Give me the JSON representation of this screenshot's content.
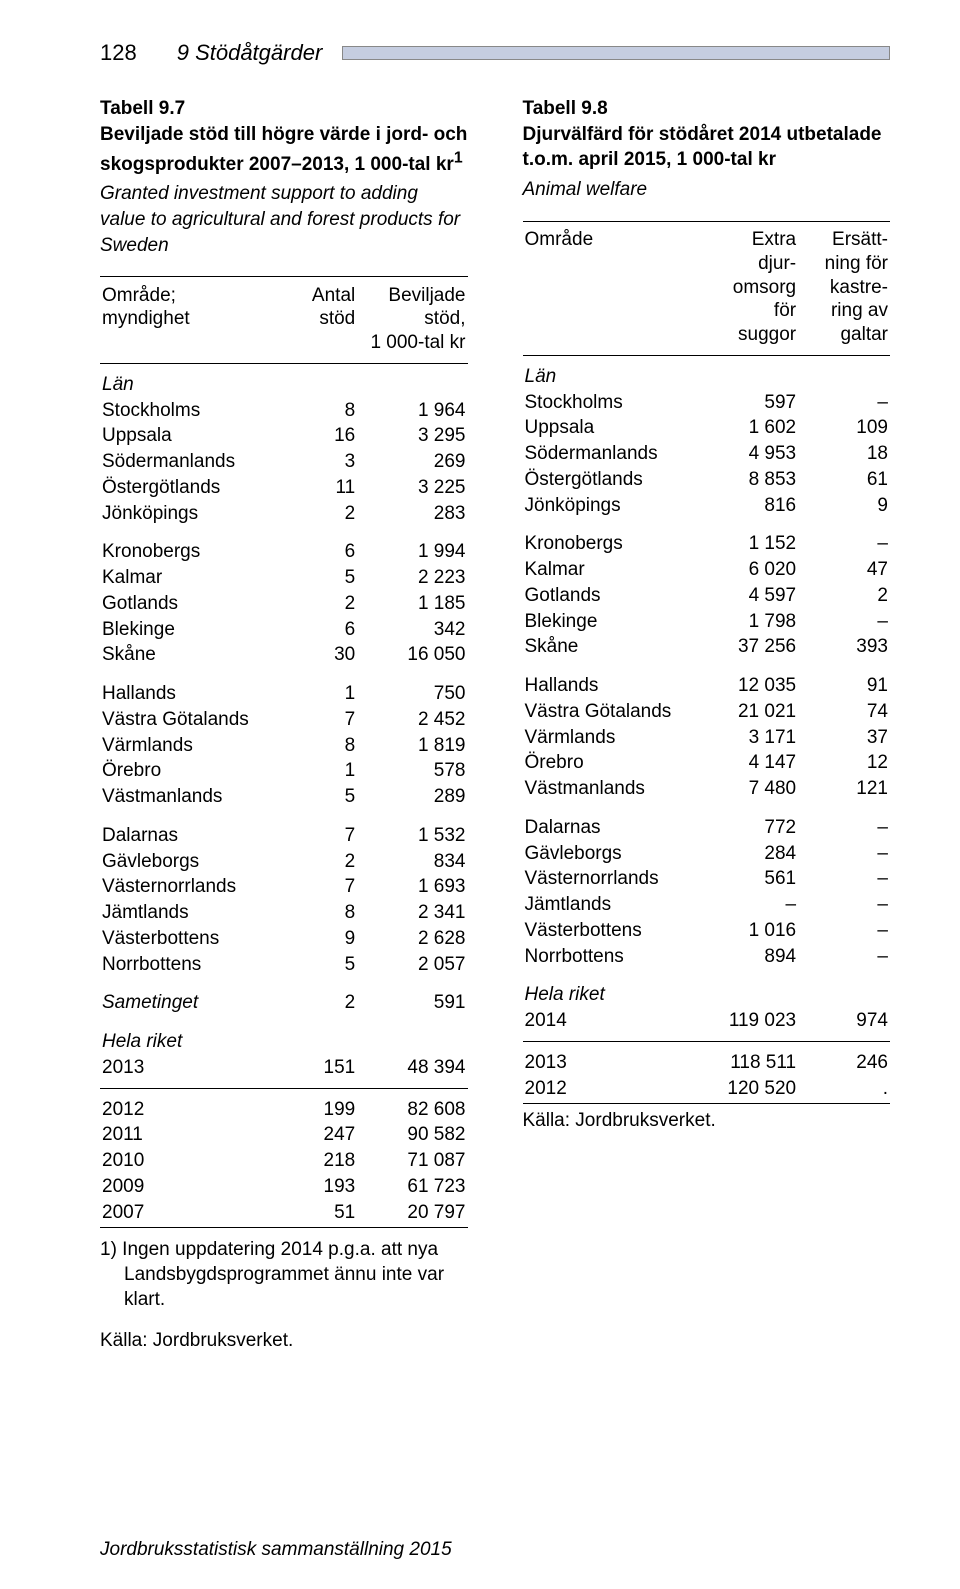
{
  "header": {
    "page_number": "128",
    "chapter": "9   Stödåtgärder"
  },
  "left": {
    "table_label": "Tabell 9.7",
    "title": "Beviljade stöd till högre värde i jord- och skogsprodukter 2007–2013, 1 000-tal kr",
    "sup": "1",
    "subtitle": "Granted investment support to adding value to agricultural and forest products for Sweden",
    "col1": "Område;\nmyndighet",
    "col2": "Antal\nstöd",
    "col3": "Beviljade\nstöd,\n1 000-tal kr",
    "lan_label": "Län",
    "groups": [
      [
        {
          "n": "Stockholms",
          "a": "8",
          "b": "1 964"
        },
        {
          "n": "Uppsala",
          "a": "16",
          "b": "3 295"
        },
        {
          "n": "Södermanlands",
          "a": "3",
          "b": "269"
        },
        {
          "n": "Östergötlands",
          "a": "11",
          "b": "3 225"
        },
        {
          "n": "Jönköpings",
          "a": "2",
          "b": "283"
        }
      ],
      [
        {
          "n": "Kronobergs",
          "a": "6",
          "b": "1 994"
        },
        {
          "n": "Kalmar",
          "a": "5",
          "b": "2 223"
        },
        {
          "n": "Gotlands",
          "a": "2",
          "b": "1 185"
        },
        {
          "n": "Blekinge",
          "a": "6",
          "b": "342"
        },
        {
          "n": "Skåne",
          "a": "30",
          "b": "16 050"
        }
      ],
      [
        {
          "n": "Hallands",
          "a": "1",
          "b": "750"
        },
        {
          "n": "Västra Götalands",
          "a": "7",
          "b": "2 452"
        },
        {
          "n": "Värmlands",
          "a": "8",
          "b": "1 819"
        },
        {
          "n": "Örebro",
          "a": "1",
          "b": "578"
        },
        {
          "n": "Västmanlands",
          "a": "5",
          "b": "289"
        }
      ],
      [
        {
          "n": "Dalarnas",
          "a": "7",
          "b": "1 532"
        },
        {
          "n": "Gävleborgs",
          "a": "2",
          "b": "834"
        },
        {
          "n": "Västernorrlands",
          "a": "7",
          "b": "1 693"
        },
        {
          "n": "Jämtlands",
          "a": "8",
          "b": "2 341"
        },
        {
          "n": "Västerbottens",
          "a": "9",
          "b": "2 628"
        },
        {
          "n": "Norrbottens",
          "a": "5",
          "b": "2 057"
        }
      ],
      [
        {
          "n": "Sametinget",
          "a": "2",
          "b": "591",
          "ital": true
        }
      ]
    ],
    "hela_label": "Hela riket",
    "year_2013": {
      "y": "2013",
      "a": "151",
      "b": "48 394"
    },
    "years_rest": [
      {
        "y": "2012",
        "a": "199",
        "b": "82 608"
      },
      {
        "y": "2011",
        "a": "247",
        "b": "90 582"
      },
      {
        "y": "2010",
        "a": "218",
        "b": "71 087"
      },
      {
        "y": "2009",
        "a": "193",
        "b": "61 723"
      },
      {
        "y": "2007",
        "a": "51",
        "b": "20 797"
      }
    ],
    "footnote": "1) Ingen uppdatering 2014 p.g.a. att nya Landsbygdsprogrammet ännu inte var klart.",
    "source": "Källa: Jordbruksverket."
  },
  "right": {
    "table_label": "Tabell 9.8",
    "title": "Djurvälfärd för stödåret 2014 utbetalade t.o.m. april 2015, 1 000-tal kr",
    "subtitle": "Animal welfare",
    "col1": "Område",
    "col2": "Extra\ndjur-\nomsorg\nför\nsuggor",
    "col3": "Ersätt-\nning för\nkastre-\nring av\ngaltar",
    "lan_label": "Län",
    "groups": [
      [
        {
          "n": "Stockholms",
          "a": "597",
          "b": "–"
        },
        {
          "n": "Uppsala",
          "a": "1 602",
          "b": "109"
        },
        {
          "n": "Södermanlands",
          "a": "4 953",
          "b": "18"
        },
        {
          "n": "Östergötlands",
          "a": "8 853",
          "b": "61"
        },
        {
          "n": "Jönköpings",
          "a": "816",
          "b": "9"
        }
      ],
      [
        {
          "n": "Kronobergs",
          "a": "1 152",
          "b": "–"
        },
        {
          "n": "Kalmar",
          "a": "6 020",
          "b": "47"
        },
        {
          "n": "Gotlands",
          "a": "4 597",
          "b": "2"
        },
        {
          "n": "Blekinge",
          "a": "1 798",
          "b": "–"
        },
        {
          "n": "Skåne",
          "a": "37 256",
          "b": "393"
        }
      ],
      [
        {
          "n": "Hallands",
          "a": "12 035",
          "b": "91"
        },
        {
          "n": "Västra Götalands",
          "a": "21 021",
          "b": "74"
        },
        {
          "n": "Värmlands",
          "a": "3 171",
          "b": "37"
        },
        {
          "n": "Örebro",
          "a": "4 147",
          "b": "12"
        },
        {
          "n": "Västmanlands",
          "a": "7 480",
          "b": "121"
        }
      ],
      [
        {
          "n": "Dalarnas",
          "a": "772",
          "b": "–"
        },
        {
          "n": "Gävleborgs",
          "a": "284",
          "b": "–"
        },
        {
          "n": "Västernorrlands",
          "a": "561",
          "b": "–"
        },
        {
          "n": "Jämtlands",
          "a": "–",
          "b": "–"
        },
        {
          "n": "Västerbottens",
          "a": "1 016",
          "b": "–"
        },
        {
          "n": "Norrbottens",
          "a": "894",
          "b": "–"
        }
      ]
    ],
    "hela_label": "Hela riket",
    "year_2014": {
      "y": "2014",
      "a": "119 023",
      "b": "974"
    },
    "year_2013": {
      "y": "2013",
      "a": "118 511",
      "b": "246"
    },
    "year_2012": {
      "y": "2012",
      "a": "120 520",
      "b": "."
    },
    "source": "Källa: Jordbruksverket."
  },
  "footer": "Jordbruksstatistisk sammanställning 2015"
}
